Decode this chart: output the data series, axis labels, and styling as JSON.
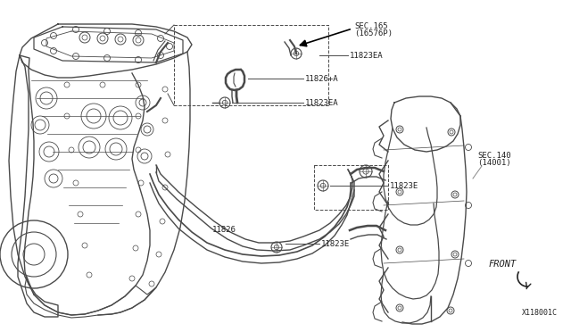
{
  "bg_color": "#ffffff",
  "line_color": "#4a4a4a",
  "dark_color": "#222222",
  "gray_color": "#888888",
  "diagram_id": "X118001C",
  "labels": {
    "sec165_line1": "SEC.165",
    "sec165_line2": "(16576P)",
    "sec140_line1": "SEC.140",
    "sec140_line2": "(14001)",
    "front": "FRONT",
    "p11823ea_top": "11823EA",
    "p11826a": "11826+A",
    "p11823ea_mid": "11823EA",
    "p11823e_mid": "11823E",
    "p11826": "11826",
    "p11823e_bot": "11823E"
  },
  "figsize": [
    6.4,
    3.72
  ],
  "dpi": 100
}
